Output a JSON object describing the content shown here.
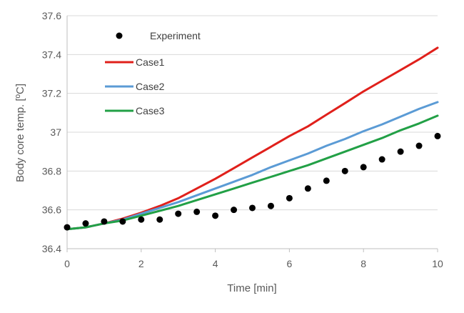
{
  "chart_data": {
    "type": "line",
    "xlabel": "Time [min]",
    "ylabel": "Body core temp. [ºC]",
    "xlim": [
      0,
      10
    ],
    "ylim": [
      36.4,
      37.6
    ],
    "x_ticks": [
      "0",
      "2",
      "4",
      "6",
      "8",
      "10"
    ],
    "y_ticks": [
      "36.4",
      "36.6",
      "36.8",
      "37",
      "37.2",
      "37.4",
      "37.6"
    ],
    "grid": "horizontal",
    "legend_position": "top-left",
    "experiment": {
      "name": "Experiment",
      "color": "#000000",
      "x": [
        0,
        0.5,
        1,
        1.5,
        2,
        2.5,
        3,
        3.5,
        4,
        4.5,
        5,
        5.5,
        6,
        6.5,
        7,
        7.5,
        8,
        8.5,
        9,
        9.5,
        10
      ],
      "y": [
        36.51,
        36.53,
        36.54,
        36.54,
        36.55,
        36.55,
        36.58,
        36.59,
        36.57,
        36.6,
        36.61,
        36.62,
        36.66,
        36.71,
        36.75,
        36.8,
        36.82,
        36.86,
        36.9,
        36.93,
        36.98
      ]
    },
    "series": [
      {
        "name": "Case1",
        "color": "#e0201b",
        "x": [
          0,
          0.5,
          1,
          1.5,
          2,
          2.5,
          3,
          3.5,
          4,
          4.5,
          5,
          5.5,
          6,
          6.5,
          7,
          7.5,
          8,
          8.5,
          9,
          9.5,
          10
        ],
        "y": [
          36.5,
          36.51,
          36.53,
          36.555,
          36.585,
          36.62,
          36.66,
          36.71,
          36.76,
          36.815,
          36.87,
          36.925,
          36.98,
          37.03,
          37.09,
          37.15,
          37.21,
          37.265,
          37.32,
          37.375,
          37.435
        ]
      },
      {
        "name": "Case2",
        "color": "#5b9bd5",
        "x": [
          0,
          0.5,
          1,
          1.5,
          2,
          2.5,
          3,
          3.5,
          4,
          4.5,
          5,
          5.5,
          6,
          6.5,
          7,
          7.5,
          8,
          8.5,
          9,
          9.5,
          10
        ],
        "y": [
          36.5,
          36.51,
          36.53,
          36.55,
          36.58,
          36.61,
          36.64,
          36.675,
          36.71,
          36.745,
          36.78,
          36.82,
          36.855,
          36.89,
          36.93,
          36.965,
          37.005,
          37.04,
          37.08,
          37.12,
          37.155
        ]
      },
      {
        "name": "Case3",
        "color": "#22a046",
        "x": [
          0,
          0.5,
          1,
          1.5,
          2,
          2.5,
          3,
          3.5,
          4,
          4.5,
          5,
          5.5,
          6,
          6.5,
          7,
          7.5,
          8,
          8.5,
          9,
          9.5,
          10
        ],
        "y": [
          36.5,
          36.51,
          36.53,
          36.545,
          36.57,
          36.595,
          36.62,
          36.65,
          36.68,
          36.71,
          36.74,
          36.77,
          36.8,
          36.83,
          36.865,
          36.9,
          36.935,
          36.97,
          37.01,
          37.045,
          37.085
        ]
      }
    ],
    "axis_color": "#bfbfbf",
    "grid_color": "#d9d9d9"
  }
}
